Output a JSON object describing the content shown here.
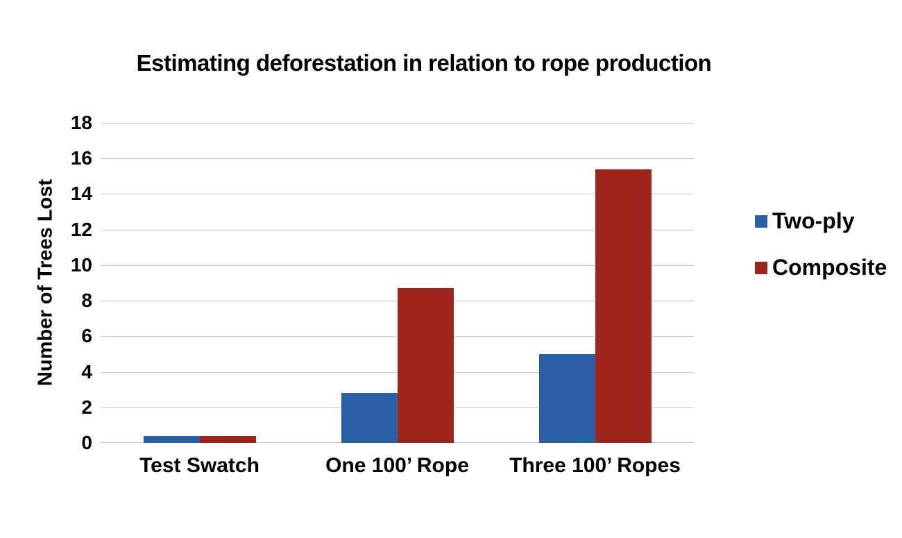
{
  "title": "Estimating deforestation in relation to rope production",
  "colors": {
    "two_ply": "#2b5fa5",
    "composite": "#9e251c",
    "gridline": "#c7c7c7",
    "text": "#000000",
    "background": "#ffffff"
  },
  "chart_data": {
    "type": "bar",
    "title": "Estimating deforestation in relation to rope production",
    "categories": [
      "Test Swatch",
      "One 100’ Rope",
      "Three 100’ Ropes"
    ],
    "series": [
      {
        "name": "Two-ply",
        "color": "#2b5fa5",
        "values": [
          0.4,
          2.8,
          5.0
        ]
      },
      {
        "name": "Composite",
        "color": "#9e251c",
        "values": [
          0.4,
          8.7,
          15.4
        ]
      }
    ],
    "xlabel": "",
    "ylabel": "Number of Trees Lost",
    "ylim": [
      0,
      18
    ],
    "ytick_step": 2,
    "grid": true,
    "legend_position": "right"
  }
}
